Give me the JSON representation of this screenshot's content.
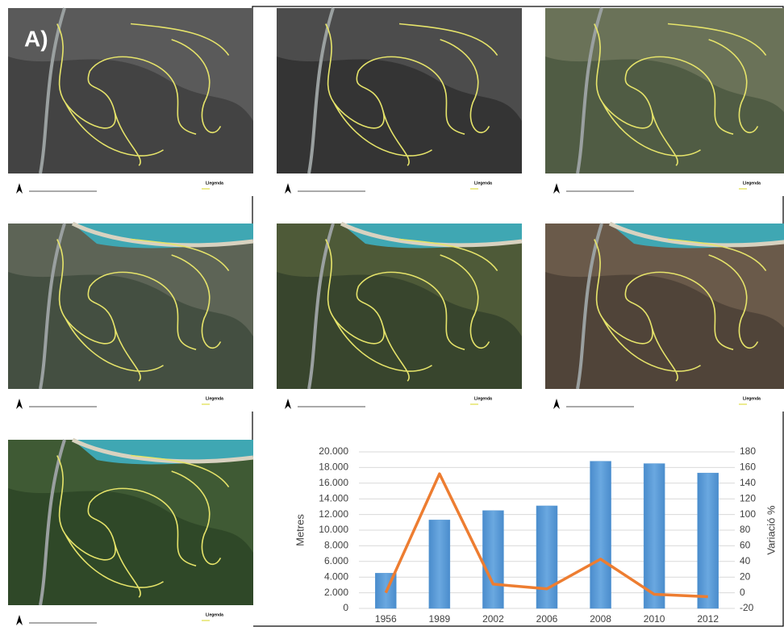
{
  "figure_label": "A)",
  "maps": [
    {
      "legend_title": "Llegenda"
    },
    {
      "legend_title": "Llegenda"
    },
    {
      "legend_title": "Llegenda"
    },
    {
      "legend_title": "Llegenda"
    },
    {
      "legend_title": "Llegenda"
    },
    {
      "legend_title": "Llegenda"
    },
    {
      "legend_title": "Llegenda"
    }
  ],
  "chart_data": {
    "type": "bar-line",
    "categories": [
      "1956",
      "1989",
      "2002",
      "2006",
      "2008",
      "2010",
      "2012"
    ],
    "ylabel": "Metres",
    "y2label": "Variació %",
    "series": [
      {
        "type": "bar",
        "color": "#5b9bd5",
        "values": [
          4500,
          11300,
          12500,
          13100,
          18800,
          18500,
          17300
        ]
      },
      {
        "type": "line",
        "axis": "y2",
        "color": "#ed7d31",
        "values": [
          0,
          152,
          11,
          5,
          43,
          -2,
          -5
        ]
      }
    ],
    "ylim": [
      0,
      20000
    ],
    "yticks": [
      0,
      {
        "value": 2000,
        "label": "2.000"
      },
      {
        "value": 4000,
        "label": "4.000"
      },
      {
        "value": 6000,
        "label": "6.000"
      },
      {
        "value": 8000,
        "label": "8.000"
      },
      {
        "value": 10000,
        "label": "10.000"
      },
      {
        "value": 12000,
        "label": "12.000"
      },
      {
        "value": 14000,
        "label": "14.000"
      },
      {
        "value": 16000,
        "label": "16.000"
      },
      {
        "value": 18000,
        "label": "18.000"
      },
      {
        "value": 20000,
        "label": "20.000"
      }
    ],
    "y2lim": [
      -20,
      180
    ],
    "y2ticks": [
      -20,
      0,
      20,
      40,
      60,
      80,
      100,
      120,
      140,
      160,
      180
    ],
    "grid": true
  }
}
